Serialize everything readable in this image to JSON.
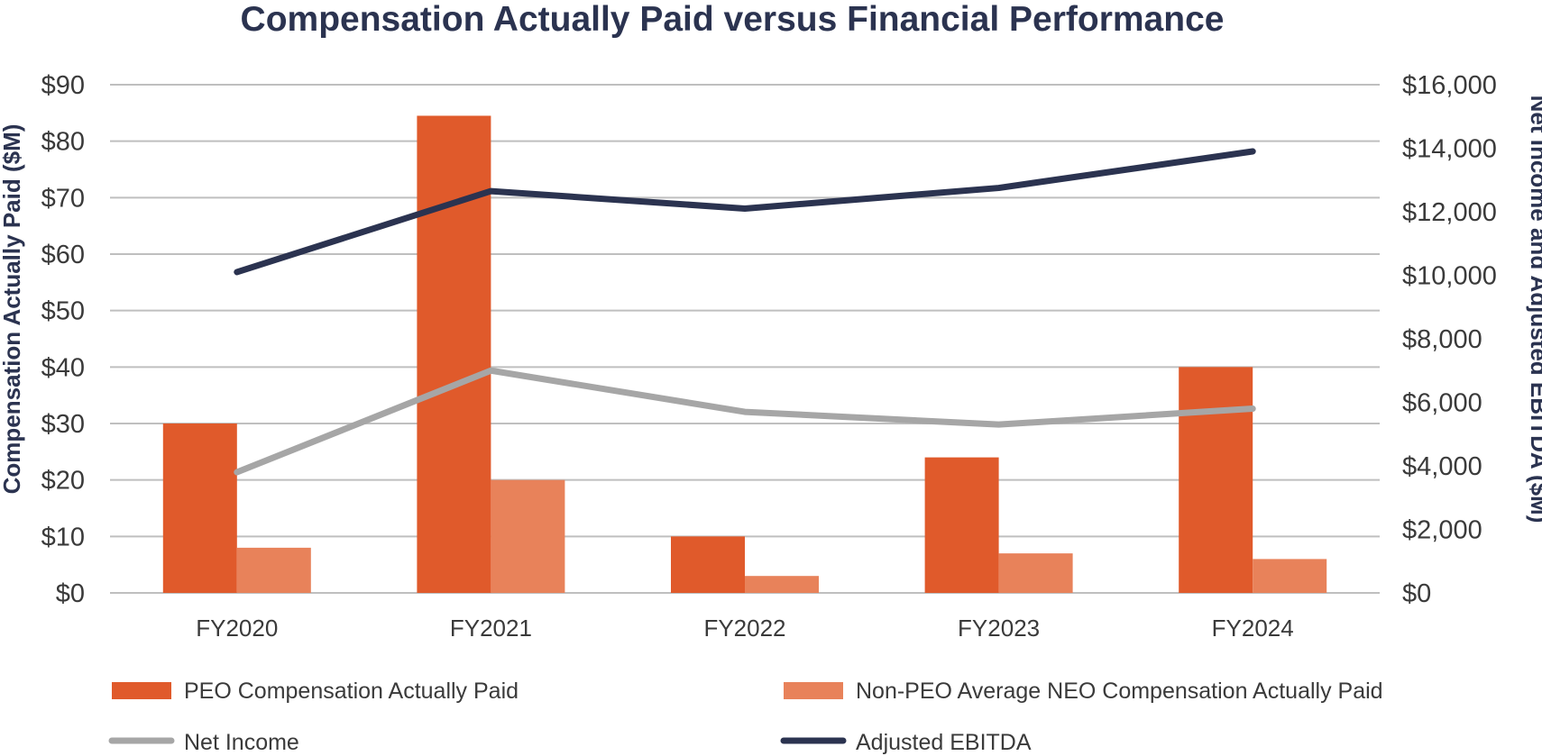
{
  "chart_data": {
    "type": "bar",
    "title": "Compensation Actually Paid versus Financial Performance",
    "categories": [
      "FY2020",
      "FY2021",
      "FY2022",
      "FY2023",
      "FY2024"
    ],
    "left_axis": {
      "label": "Compensation Actually Paid ($M)",
      "range": [
        0,
        90
      ],
      "ticks": [
        0,
        10,
        20,
        30,
        40,
        50,
        60,
        70,
        80,
        90
      ],
      "tick_labels": [
        "$0",
        "$10",
        "$20",
        "$30",
        "$40",
        "$50",
        "$60",
        "$70",
        "$80",
        "$90"
      ]
    },
    "right_axis": {
      "label": "Net Income and Adjusted EBITDA ($M)",
      "range": [
        0,
        16000
      ],
      "ticks": [
        0,
        2000,
        4000,
        6000,
        8000,
        10000,
        12000,
        14000,
        16000
      ],
      "tick_labels": [
        "$0",
        "$2,000",
        "$4,000",
        "$6,000",
        "$8,000",
        "$10,000",
        "$12,000",
        "$14,000",
        "$16,000"
      ]
    },
    "grid": true,
    "legend_position": "bottom",
    "series": [
      {
        "name": "PEO Compensation Actually Paid",
        "type": "bar",
        "axis": "left",
        "color": "#e05a2b",
        "values": [
          30,
          84.5,
          10,
          24,
          40
        ]
      },
      {
        "name": "Non-PEO Average NEO Compensation Actually Paid",
        "type": "bar",
        "axis": "left",
        "color": "#e8825a",
        "values": [
          8,
          20,
          3,
          7,
          6
        ]
      },
      {
        "name": "Net Income",
        "type": "line",
        "axis": "right",
        "color": "#a6a6a6",
        "values": [
          3800,
          7000,
          5700,
          5300,
          5800
        ]
      },
      {
        "name": "Adjusted EBITDA",
        "type": "line",
        "axis": "right",
        "color": "#2b3350",
        "values": [
          10100,
          12650,
          12100,
          12750,
          13900
        ]
      }
    ]
  }
}
